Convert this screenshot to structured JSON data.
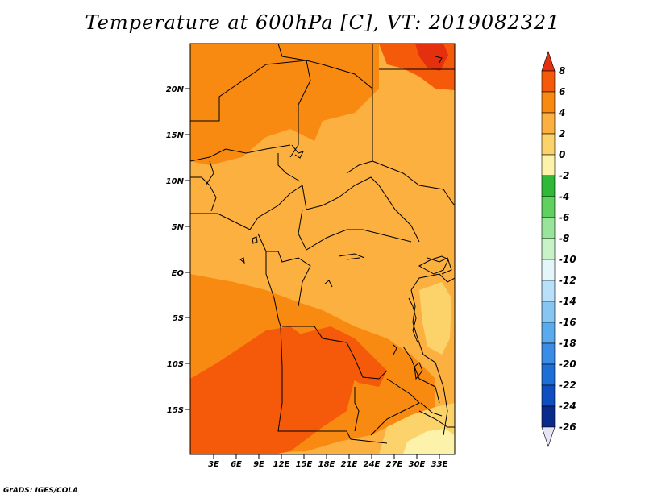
{
  "title": "Temperature at 600hPa [C], VT: 2019082321",
  "credit": "GrADS: IGES/COLA",
  "lat_labels": [
    "20N",
    "15N",
    "10N",
    "5N",
    "EQ",
    "5S",
    "10S",
    "15S"
  ],
  "lon_labels": [
    "3E",
    "6E",
    "9E",
    "12E",
    "15E",
    "18E",
    "21E",
    "24E",
    "27E",
    "30E",
    "33E"
  ],
  "colorbar": {
    "labels": [
      "8",
      "6",
      "4",
      "2",
      "0",
      "-2",
      "-4",
      "-6",
      "-8",
      "-10",
      "-12",
      "-14",
      "-16",
      "-18",
      "-20",
      "-22",
      "-24",
      "-26"
    ],
    "colors": [
      "#e53010",
      "#f45a0a",
      "#f88a12",
      "#fbb040",
      "#fcd36a",
      "#fdf2aa",
      "#30b838",
      "#60d060",
      "#98e49a",
      "#c8f2c8",
      "#e4f6fa",
      "#b8e0f8",
      "#88c6f2",
      "#5aaaee",
      "#3a8ce6",
      "#1e6ed8",
      "#0e4ec0",
      "#0a2a8c",
      "#080a50"
    ],
    "top_color": "#e53010",
    "bottom_color": "#e8e4f6"
  },
  "map_colors": {
    "background": "#fbb040",
    "warm": "#f88a12",
    "hot": "#f45a0a",
    "hotter": "#e53010",
    "mild": "#fcd36a",
    "cool": "#fdf2aa"
  }
}
